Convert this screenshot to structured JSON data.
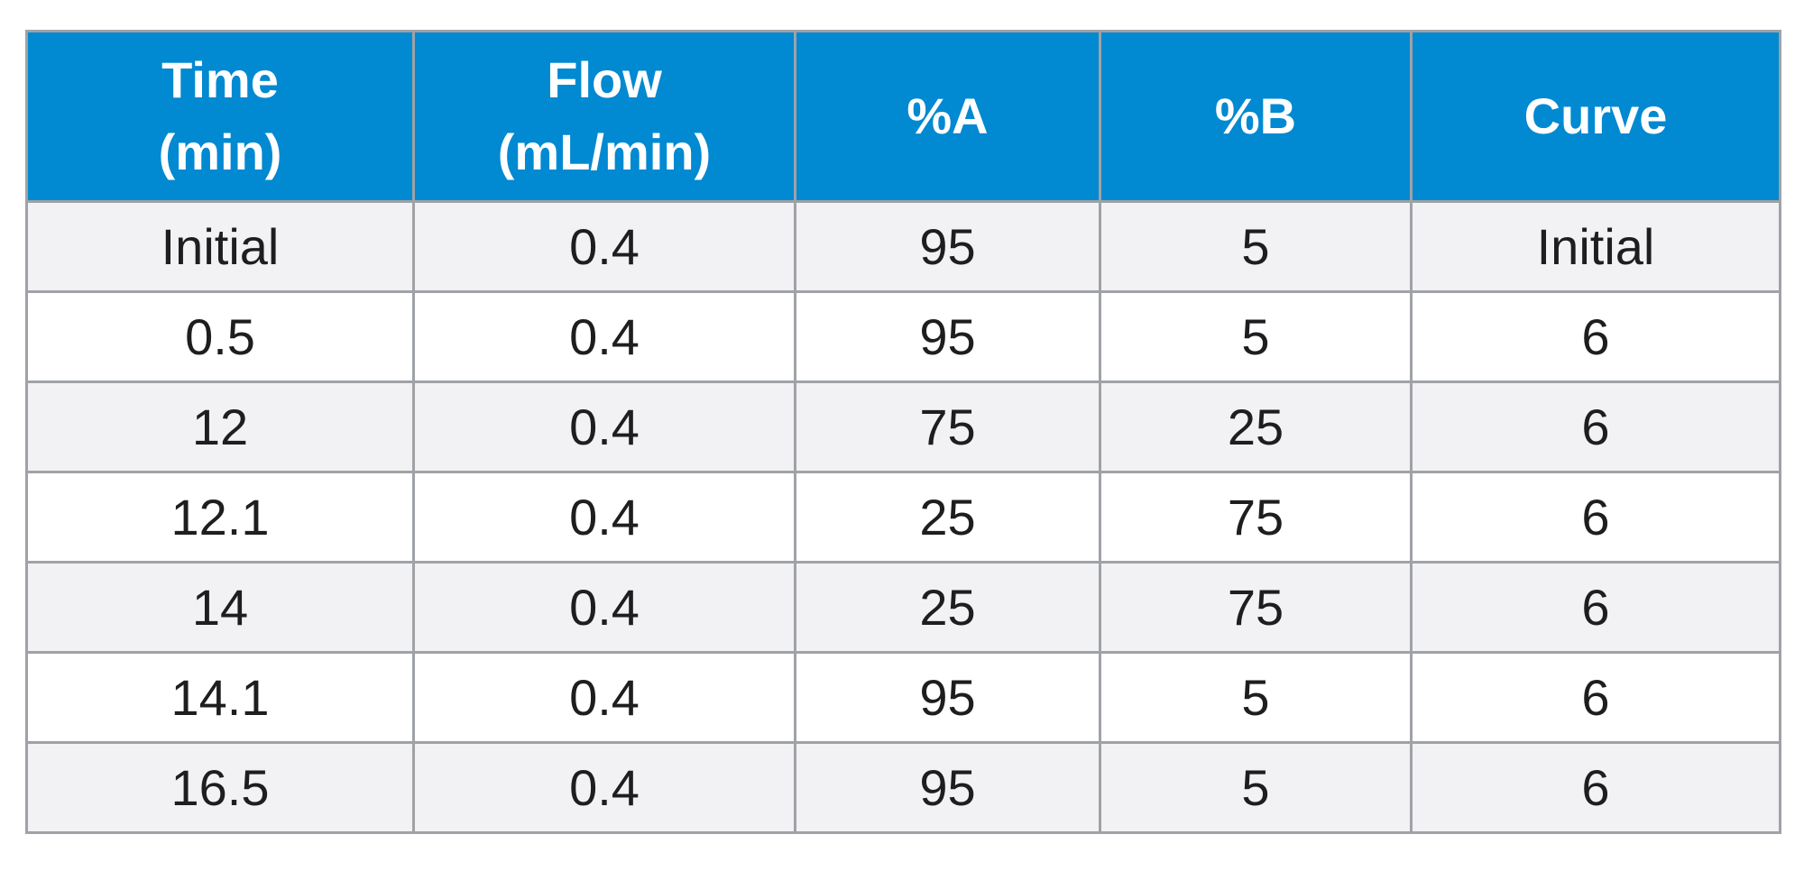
{
  "table": {
    "headers": [
      [
        "Time",
        "(min)"
      ],
      [
        "Flow",
        "(mL/min)"
      ],
      [
        "%A"
      ],
      [
        "%B"
      ],
      [
        "Curve"
      ]
    ],
    "rows": [
      [
        "Initial",
        "0.4",
        "95",
        "5",
        "Initial"
      ],
      [
        "0.5",
        "0.4",
        "95",
        "5",
        "6"
      ],
      [
        "12",
        "0.4",
        "75",
        "25",
        "6"
      ],
      [
        "12.1",
        "0.4",
        "25",
        "75",
        "6"
      ],
      [
        "14",
        "0.4",
        "25",
        "75",
        "6"
      ],
      [
        "14.1",
        "0.4",
        "95",
        "5",
        "6"
      ],
      [
        "16.5",
        "0.4",
        "95",
        "5",
        "6"
      ]
    ]
  },
  "colors": {
    "header_background": "#0189d1",
    "header_text": "#ffffff",
    "stripe_background": "#f2f2f4",
    "row_background": "#ffffff",
    "grid_line": "#9fa2a6"
  }
}
